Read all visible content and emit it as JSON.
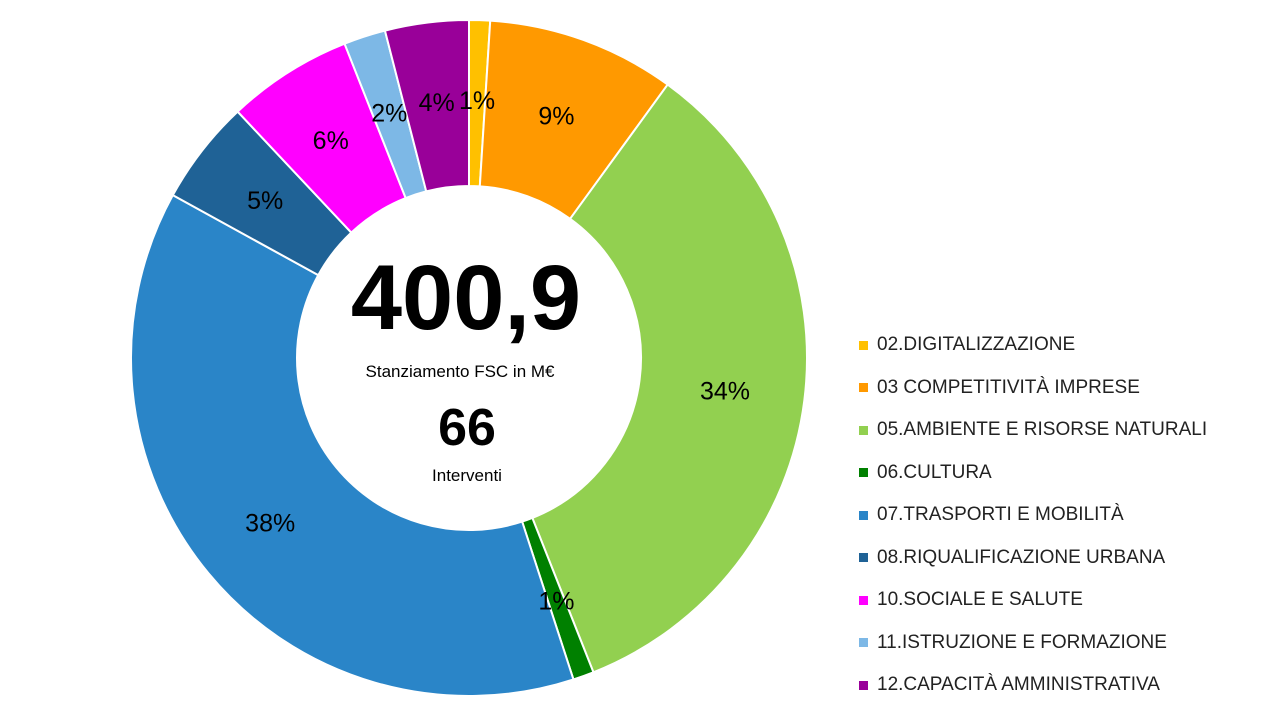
{
  "chart_data": {
    "type": "pie",
    "variant": "donut",
    "legend_position": "right",
    "slices": [
      {
        "label": "02.DIGITALIZZAZIONE",
        "value": 1,
        "display": "1%",
        "color": "#FFC000"
      },
      {
        "label": "03 COMPETITIVITÀ IMPRESE",
        "value": 9,
        "display": "9%",
        "color": "#FF9900"
      },
      {
        "label": "05.AMBIENTE E RISORSE NATURALI",
        "value": 34,
        "display": "34%",
        "color": "#92D050"
      },
      {
        "label": "06.CULTURA",
        "value": 1,
        "display": "1%",
        "color": "#008000"
      },
      {
        "label": "07.TRASPORTI E MOBILITÀ",
        "value": 38,
        "display": "38%",
        "color": "#2A85C8"
      },
      {
        "label": "08.RIQUALIFICAZIONE URBANA",
        "value": 5,
        "display": "5%",
        "color": "#1F6296"
      },
      {
        "label": "10.SOCIALE E SALUTE",
        "value": 6,
        "display": "6%",
        "color": "#FF00FF"
      },
      {
        "label": "11.ISTRUZIONE E FORMAZIONE",
        "value": 2,
        "display": "2%",
        "color": "#7DB8E6"
      },
      {
        "label": "12.CAPACITÀ AMMINISTRATIVA",
        "value": 4,
        "display": "4%",
        "color": "#990099"
      }
    ]
  },
  "center": {
    "amount": "400,9",
    "amount_caption": "Stanziamento  FSC in M€",
    "count": "66",
    "count_caption": "Interventi"
  }
}
